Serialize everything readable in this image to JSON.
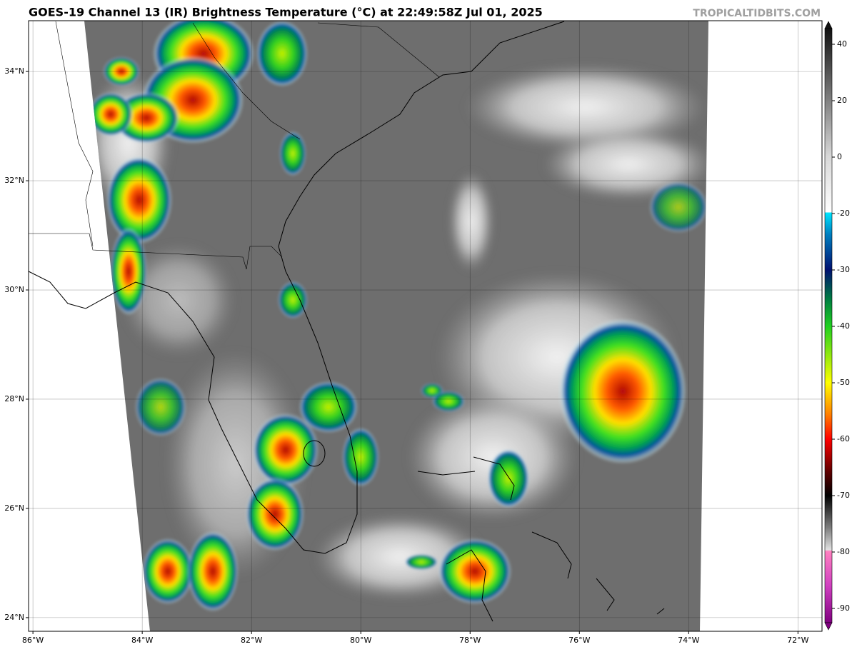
{
  "header": {
    "title": "GOES-19 Channel 13 (IR) Brightness Temperature (°C) at 22:49:58Z Jul 01, 2025",
    "credit": "TROPICALTIDBITS.COM"
  },
  "map": {
    "xlim": [
      -86.08,
      -71.56
    ],
    "ylim": [
      23.75,
      34.93
    ],
    "xticks": [
      {
        "value": -86,
        "label": "86°W"
      },
      {
        "value": -84,
        "label": "84°W"
      },
      {
        "value": -82,
        "label": "82°W"
      },
      {
        "value": -80,
        "label": "80°W"
      },
      {
        "value": -78,
        "label": "78°W"
      },
      {
        "value": -76,
        "label": "76°W"
      },
      {
        "value": -74,
        "label": "74°W"
      },
      {
        "value": -72,
        "label": "72°W"
      }
    ],
    "yticks": [
      {
        "value": 24,
        "label": "24°N"
      },
      {
        "value": 26,
        "label": "26°N"
      },
      {
        "value": 28,
        "label": "28°N"
      },
      {
        "value": 30,
        "label": "30°N"
      },
      {
        "value": 32,
        "label": "32°N"
      },
      {
        "value": 34,
        "label": "34°N"
      }
    ]
  },
  "colorbar": {
    "ticks": [
      40,
      20,
      0,
      -20,
      -30,
      -40,
      -50,
      -60,
      -70,
      -80,
      -90
    ]
  }
}
